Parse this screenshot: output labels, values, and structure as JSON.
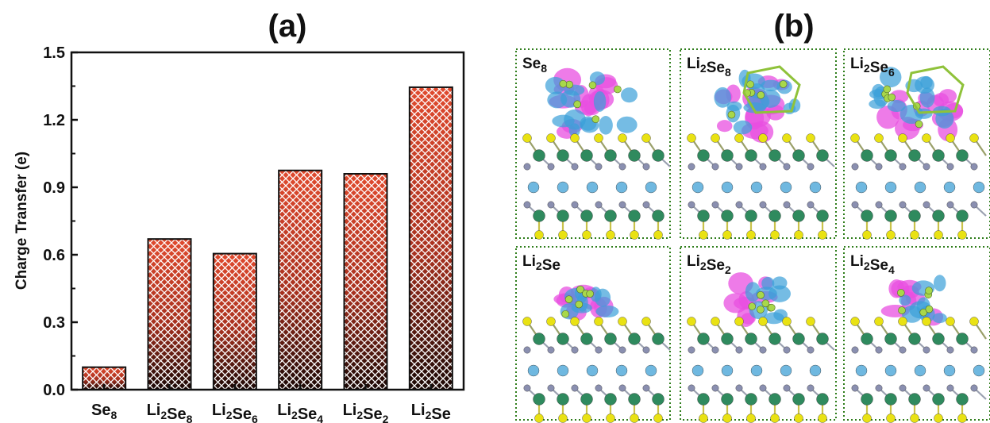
{
  "panel_a": {
    "label": "(a)"
  },
  "panel_b": {
    "label": "(b)",
    "structures": [
      {
        "label": "Se8",
        "base": "Se",
        "sub": "8"
      },
      {
        "label": "Li2Se8",
        "base": "Li",
        "sub": "2",
        "base2": "Se",
        "sub2": "8"
      },
      {
        "label": "Li2Se6",
        "base": "Li",
        "sub": "2",
        "base2": "Se",
        "sub2": "6"
      },
      {
        "label": "Li2Se",
        "base": "Li",
        "sub": "2",
        "base2": "Se",
        "sub2": ""
      },
      {
        "label": "Li2Se2",
        "base": "Li",
        "sub": "2",
        "base2": "Se",
        "sub2": "2"
      },
      {
        "label": "Li2Se4",
        "base": "Li",
        "sub": "2",
        "base2": "Se",
        "sub2": "4"
      }
    ]
  },
  "colors": {
    "bar_top": "#e04a2e",
    "bar_bottom": "#1a0805",
    "frame_dotted": "#2e7d1a",
    "charge_pink": "#e84fe0",
    "charge_cyan": "#3a9fd8",
    "atom_green": "#2f8a5e",
    "atom_yellow": "#e9e213",
    "atom_blue": "#6fb8e0",
    "atom_grey": "#8a8fb0",
    "atom_lime": "#a8d84a",
    "atom_maroon": "#8a2a5a"
  },
  "chart_data": {
    "type": "bar",
    "categories": [
      "Se8",
      "Li2Se8",
      "Li2Se6",
      "Li2Se4",
      "Li2Se2",
      "Li2Se"
    ],
    "category_parts": [
      {
        "a": "Se",
        "a_sub": "8",
        "b": "",
        "b_sub": ""
      },
      {
        "a": "Li",
        "a_sub": "2",
        "b": "Se",
        "b_sub": "8"
      },
      {
        "a": "Li",
        "a_sub": "2",
        "b": "Se",
        "b_sub": "6"
      },
      {
        "a": "Li",
        "a_sub": "2",
        "b": "Se",
        "b_sub": "4"
      },
      {
        "a": "Li",
        "a_sub": "2",
        "b": "Se",
        "b_sub": "2"
      },
      {
        "a": "Li",
        "a_sub": "2",
        "b": "Se",
        "b_sub": ""
      }
    ],
    "values": [
      0.1,
      0.67,
      0.605,
      0.975,
      0.96,
      1.345
    ],
    "ylabel": "Charge Transfer (e)",
    "xlabel": "",
    "ylim": [
      0.0,
      1.5
    ],
    "yticks": [
      "0.0",
      "0.3",
      "0.6",
      "0.9",
      "1.2",
      "1.5"
    ],
    "grid": false,
    "fill_pattern": "crosshatch gradient"
  }
}
